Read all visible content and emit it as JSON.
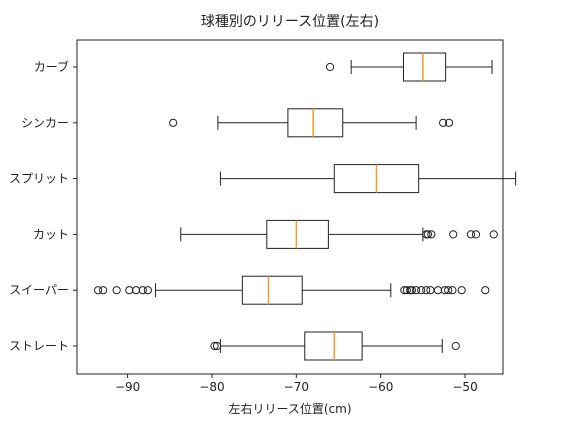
{
  "chart_data": {
    "type": "boxplot",
    "orientation": "horizontal",
    "title": "球種別のリリース位置(左右)",
    "xlabel": "左右リリース位置(cm)",
    "ylabel": "",
    "xlim": [
      -96,
      -45.5
    ],
    "xticks": [
      -90,
      -80,
      -70,
      -60,
      -50
    ],
    "xtick_labels": [
      "−90",
      "−80",
      "−70",
      "−60",
      "−50"
    ],
    "median_color": "#f39c2b",
    "box_color": "#222222",
    "categories": [
      "カーブ",
      "シンカー",
      "スプリット",
      "カット",
      "スイーパー",
      "ストレート"
    ],
    "boxes": [
      {
        "name": "カーブ",
        "whisker_low": -63.5,
        "q1": -57.3,
        "median": -55.0,
        "q3": -52.3,
        "whisker_high": -46.8,
        "outliers": [
          -66.0
        ]
      },
      {
        "name": "シンカー",
        "whisker_low": -79.3,
        "q1": -71.0,
        "median": -68.0,
        "q3": -64.5,
        "whisker_high": -55.8,
        "outliers": [
          -84.6,
          -52.6,
          -51.9
        ]
      },
      {
        "name": "スプリット",
        "whisker_low": -79.0,
        "q1": -65.5,
        "median": -60.5,
        "q3": -55.5,
        "whisker_high": -44.0,
        "outliers": []
      },
      {
        "name": "カット",
        "whisker_low": -83.7,
        "q1": -73.5,
        "median": -70.0,
        "q3": -66.2,
        "whisker_high": -55.0,
        "outliers": [
          -54.6,
          -54.4,
          -54.0,
          -51.4,
          -49.3,
          -48.7,
          -46.6
        ]
      },
      {
        "name": "スイーパー",
        "whisker_low": -86.7,
        "q1": -76.4,
        "median": -73.3,
        "q3": -69.3,
        "whisker_high": -58.8,
        "outliers": [
          -93.5,
          -92.9,
          -91.3,
          -89.8,
          -89.0,
          -88.2,
          -87.6,
          -57.2,
          -56.9,
          -56.5,
          -56.3,
          -55.8,
          -55.2,
          -54.6,
          -54.1,
          -53.2,
          -52.4,
          -52.0,
          -51.5,
          -50.4,
          -47.6
        ]
      },
      {
        "name": "ストレート",
        "whisker_low": -79.0,
        "q1": -69.0,
        "median": -65.5,
        "q3": -62.2,
        "whisker_high": -52.7,
        "outliers": [
          -79.7,
          -79.4,
          -51.1
        ]
      }
    ]
  }
}
